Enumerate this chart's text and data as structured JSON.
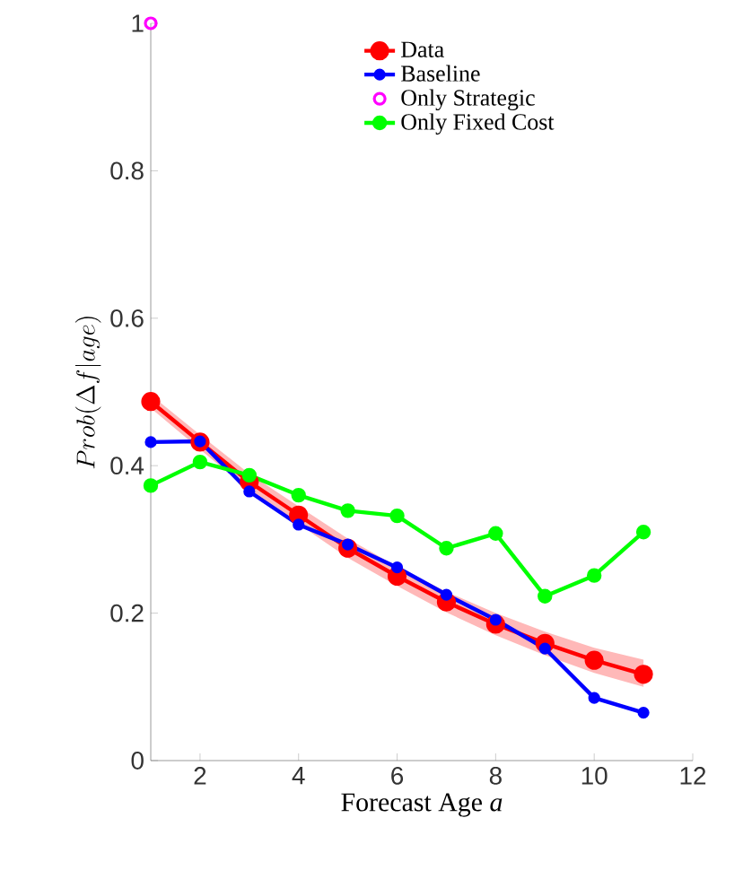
{
  "chart_data": {
    "type": "line",
    "xlabel": "Forecast Age *a*",
    "ylabel": "Prob(\\Delta f|age)",
    "x": [
      1,
      2,
      3,
      4,
      5,
      6,
      7,
      8,
      9,
      10,
      11
    ],
    "series": [
      {
        "name": "Data",
        "color": "#ff0000",
        "marker": "circle",
        "values": [
          0.487,
          0.432,
          0.378,
          0.333,
          0.288,
          0.25,
          0.215,
          0.185,
          0.159,
          0.136,
          0.117
        ],
        "lower": [
          0.478,
          0.422,
          0.367,
          0.321,
          0.275,
          0.237,
          0.201,
          0.17,
          0.143,
          0.119,
          0.1
        ],
        "upper": [
          0.496,
          0.442,
          0.389,
          0.345,
          0.301,
          0.263,
          0.229,
          0.2,
          0.175,
          0.153,
          0.137
        ]
      },
      {
        "name": "Baseline",
        "color": "#0000ff",
        "marker": "circle",
        "values": [
          0.432,
          0.433,
          0.365,
          0.32,
          0.293,
          0.262,
          0.225,
          0.191,
          0.152,
          0.085,
          0.065
        ]
      },
      {
        "name": "Only Strategic",
        "color": "#ff00ff",
        "type": "scatter",
        "marker": "circle",
        "x": [
          1
        ],
        "values": [
          1.0
        ]
      },
      {
        "name": "Only Fixed Cost",
        "color": "#00ff00",
        "marker": "circle",
        "values": [
          0.373,
          0.405,
          0.387,
          0.36,
          0.339,
          0.332,
          0.288,
          0.308,
          0.223,
          0.251,
          0.31
        ]
      }
    ],
    "xlim": [
      1,
      12
    ],
    "xticks": [
      2,
      4,
      6,
      8,
      10,
      12
    ],
    "ylim": [
      0,
      1
    ],
    "yticks": [
      0,
      0.2,
      0.4,
      0.6,
      0.8,
      1
    ],
    "grid": false,
    "legend": "top right"
  }
}
